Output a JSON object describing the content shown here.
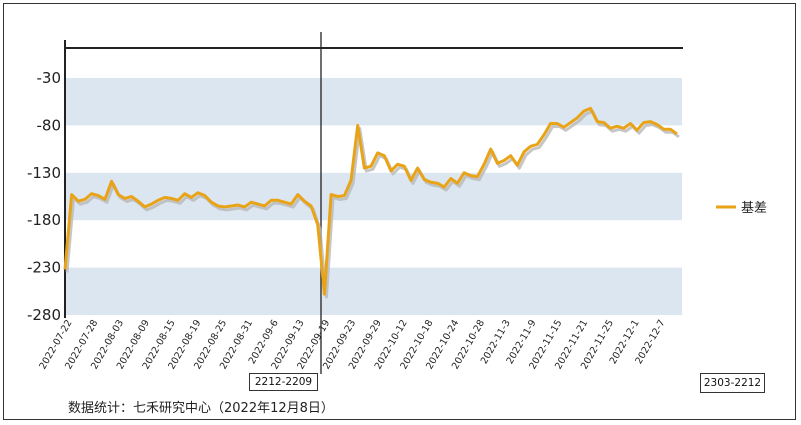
{
  "chart_data": {
    "type": "line",
    "ylim": [
      -280,
      10
    ],
    "yticks": [
      -30,
      -80,
      -130,
      -180,
      -230,
      -280
    ],
    "legend": "right",
    "series": [
      {
        "name": "基差",
        "color": "#E8A317",
        "values": [
          -232,
          -153,
          -160,
          -158,
          -152,
          -154,
          -158,
          -139,
          -153,
          -157,
          -155,
          -160,
          -166,
          -163,
          -159,
          -156,
          -157,
          -159,
          -152,
          -156,
          -151,
          -154,
          -161,
          -165,
          -166,
          -165,
          -164,
          -166,
          -161,
          -163,
          -165,
          -159,
          -159,
          -161,
          -163,
          -153,
          -160,
          -165,
          -185,
          -258,
          -153,
          -155,
          -154,
          -138,
          -80,
          -125,
          -123,
          -109,
          -112,
          -128,
          -121,
          -123,
          -138,
          -125,
          -137,
          -140,
          -141,
          -145,
          -136,
          -141,
          -130,
          -133,
          -134,
          -121,
          -105,
          -120,
          -117,
          -112,
          -122,
          -108,
          -102,
          -100,
          -90,
          -78,
          -78,
          -82,
          -77,
          -72,
          -65,
          -62,
          -76,
          -77,
          -83,
          -81,
          -83,
          -78,
          -85,
          -77,
          -76,
          -79,
          -84,
          -84,
          -89
        ]
      }
    ],
    "x_ticks": [
      "2022-07-22",
      "2022-07-28",
      "2022-08-03",
      "2022-08-09",
      "2022-08-15",
      "2022-08-19",
      "2022-08-25",
      "2022-08-31",
      "2022-09-6",
      "2022-09-13",
      "2022-09-19",
      "2022-09-23",
      "2022-09-29",
      "2022-10-12",
      "2022-10-18",
      "2022-10-24",
      "2022-10-28",
      "2022-11-3",
      "2022-11-9",
      "2022-11-15",
      "2022-11-21",
      "2022-11-25",
      "2022-12-1",
      "2022-12-7"
    ],
    "annotations": [
      "2212-2209",
      "2303-2212"
    ],
    "style": {
      "band_color": "#DCE6F1",
      "line_color": "#E8A317",
      "shadow_color": "#B8B8B8"
    }
  },
  "source_label": "数据统计：七禾研究中心（2022年12月8日）"
}
